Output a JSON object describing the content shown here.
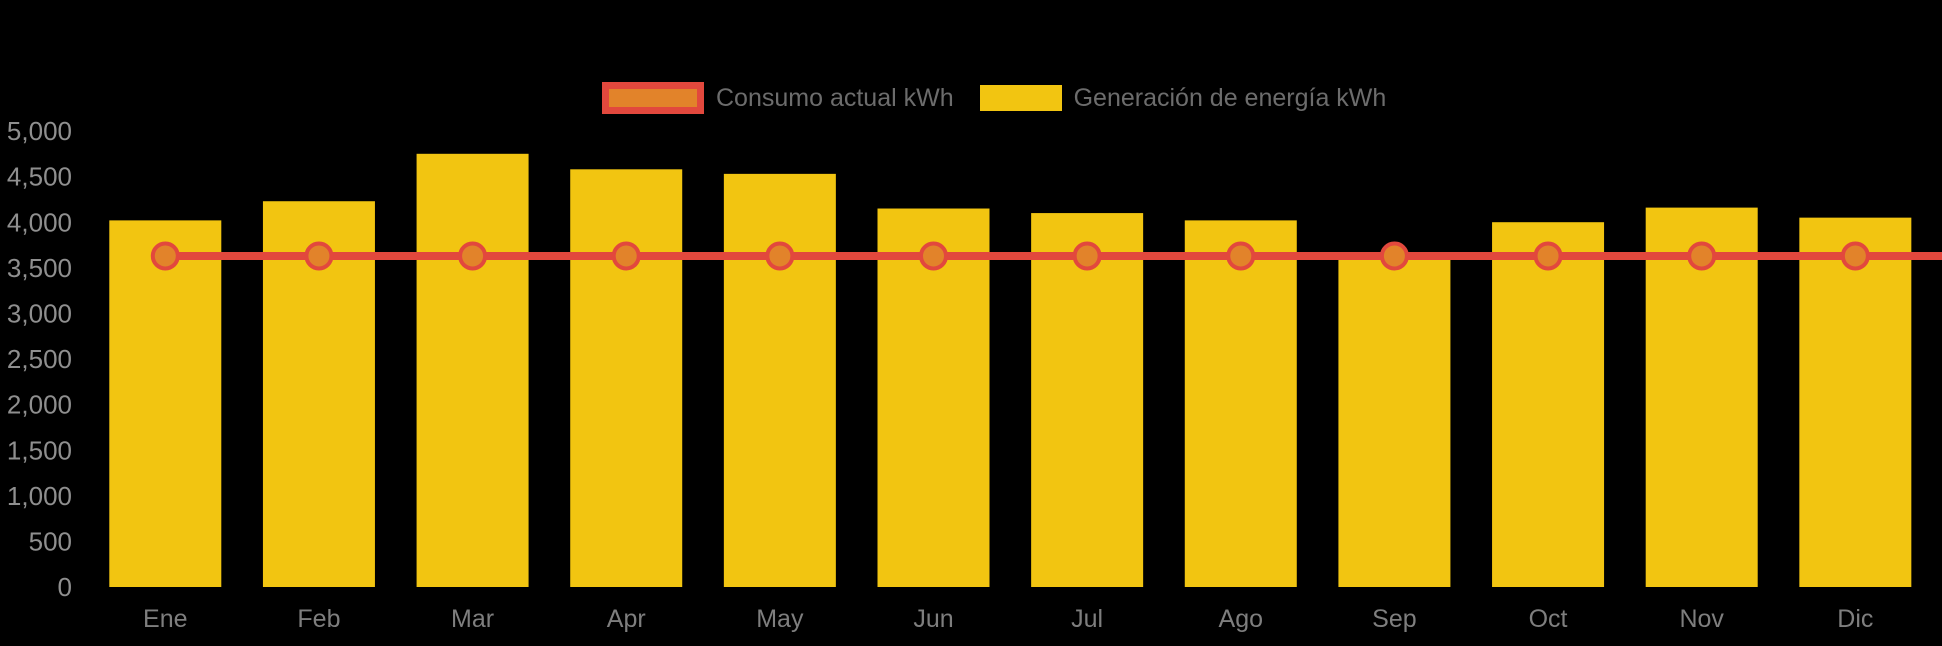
{
  "chart_data": {
    "type": "bar",
    "title": "",
    "categories": [
      "Ene",
      "Feb",
      "Mar",
      "Apr",
      "May",
      "Jun",
      "Jul",
      "Ago",
      "Sep",
      "Oct",
      "Nov",
      "Dic"
    ],
    "series": [
      {
        "name": "Consumo actual kWh",
        "type": "line",
        "color": "#E2483D",
        "point_color": "#E2832A",
        "values": [
          3630,
          3630,
          3630,
          3630,
          3630,
          3630,
          3630,
          3630,
          3630,
          3630,
          3630,
          3630
        ]
      },
      {
        "name": "Generación de energía kWh",
        "type": "bar",
        "color": "#F2C511",
        "values": [
          4020,
          4230,
          4750,
          4580,
          4530,
          4150,
          4100,
          4020,
          3600,
          4000,
          4160,
          4050
        ]
      }
    ],
    "ylim": [
      0,
      5000
    ],
    "ytick_interval": 500,
    "ytick_labels": [
      "0",
      "500",
      "1,000",
      "1,500",
      "2,000",
      "2,500",
      "3,000",
      "3,500",
      "4,000",
      "4,500",
      "5,000"
    ],
    "grid": false,
    "legend_position": "top",
    "background": "#000000",
    "axis_text_color": "#8F8F8F",
    "xlabel": "",
    "ylabel": ""
  }
}
